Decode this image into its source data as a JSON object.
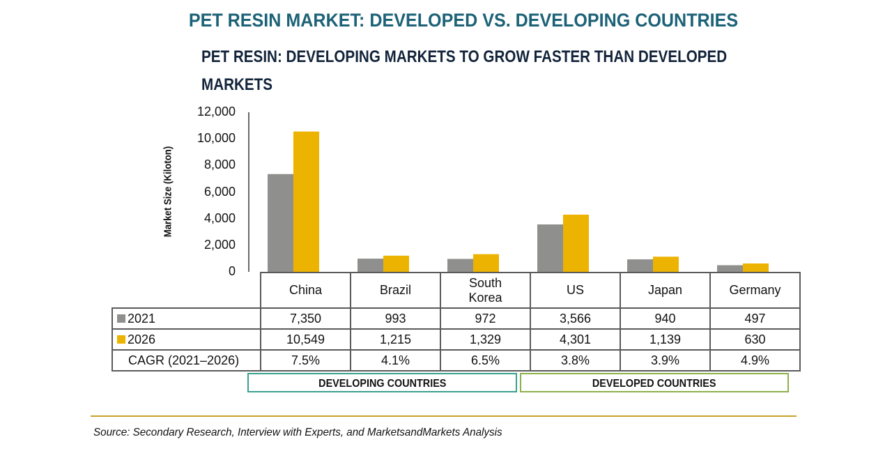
{
  "title": "PET RESIN MARKET: DEVELOPED VS. DEVELOPING COUNTRIES",
  "colors": {
    "title": "#1c6277",
    "series_2021": "#8f908d",
    "series_2026": "#ecb300",
    "developing_border": "#3aa08d",
    "developed_border": "#8db04b",
    "rule": "#c9a227"
  },
  "chart_data": {
    "type": "bar",
    "title": "PET RESIN: DEVELOPING MARKETS TO GROW FASTER THAN DEVELOPED",
    "title_line2": "MARKETS",
    "ylabel": "Market Size (Kiloton)",
    "xlabel": "",
    "ylim": [
      0,
      12000
    ],
    "yticks": [
      "12,000",
      "10,000",
      "8,000",
      "6,000",
      "4,000",
      "2,000",
      "0"
    ],
    "ytick_values": [
      12000,
      10000,
      8000,
      6000,
      4000,
      2000,
      0
    ],
    "grid": false,
    "categories": [
      "China",
      "Brazil",
      "South Korea",
      "US",
      "Japan",
      "Germany"
    ],
    "category_lines": [
      [
        "China"
      ],
      [
        "Brazil"
      ],
      [
        "South",
        "Korea"
      ],
      [
        "US"
      ],
      [
        "Japan"
      ],
      [
        "Germany"
      ]
    ],
    "series": [
      {
        "name": "2021",
        "values": [
          7350,
          993,
          972,
          3566,
          940,
          497
        ],
        "labels": [
          "7,350",
          "993",
          "972",
          "3,566",
          "940",
          "497"
        ]
      },
      {
        "name": "2026",
        "values": [
          10549,
          1215,
          1329,
          4301,
          1139,
          630
        ],
        "labels": [
          "10,549",
          "1,215",
          "1,329",
          "4,301",
          "1,139",
          "630"
        ]
      }
    ],
    "cagr": {
      "label": "CAGR (2021–2026)",
      "values": [
        "7.5%",
        "4.1%",
        "6.5%",
        "3.8%",
        "3.9%",
        "4.9%"
      ]
    },
    "groups": [
      {
        "label": "DEVELOPING COUNTRIES",
        "categories": [
          "China",
          "Brazil",
          "South Korea"
        ]
      },
      {
        "label": "DEVELOPED COUNTRIES",
        "categories": [
          "US",
          "Japan",
          "Germany"
        ]
      }
    ],
    "legend": "in-table"
  },
  "source": "Source: Secondary Research, Interview with Experts, and MarketsandMarkets Analysis"
}
